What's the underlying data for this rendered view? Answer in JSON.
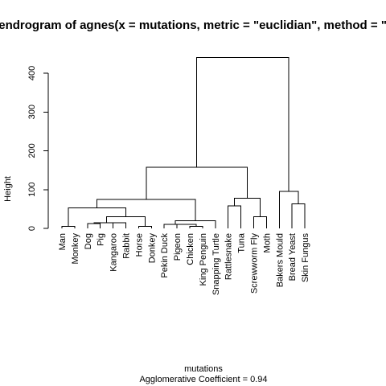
{
  "chart_data": {
    "type": "dendrogram",
    "title": "Dendrogram of  agnes(x = mutations, metric = \"euclidian\", method = \"w",
    "ylabel": "Height",
    "xlabel": "mutations",
    "subtitle": "Agglomerative Coefficient =  0.94",
    "ylim": [
      0,
      460
    ],
    "yticks": [
      0,
      100,
      200,
      300,
      400
    ],
    "leaves": [
      "Man",
      "Monkey",
      "Dog",
      "Pig",
      "Kangaroo",
      "Rabbit",
      "Horse",
      "Donkey",
      "Pekin Duck",
      "Pigeon",
      "Chicken",
      "King Penguin",
      "Snapping Turtle",
      "Rattlesnake",
      "Tuna",
      "Screwworm Fly",
      "Moth",
      "Bakers Mould",
      "Bread Yeast",
      "Skin Fungus"
    ],
    "merges": [
      {
        "left": -1,
        "right": -2,
        "height": 5
      },
      {
        "left": -3,
        "right": -4,
        "height": 12
      },
      {
        "left": -5,
        "right": -6,
        "height": 15
      },
      {
        "left": 2,
        "right": 3,
        "height": 15
      },
      {
        "left": -7,
        "right": -8,
        "height": 5
      },
      {
        "left": 4,
        "right": 5,
        "height": 30
      },
      {
        "left": 1,
        "right": 6,
        "height": 53
      },
      {
        "left": -11,
        "right": -12,
        "height": 5
      },
      {
        "left": -10,
        "right": 8,
        "height": 10
      },
      {
        "left": -9,
        "right": 9,
        "height": 10
      },
      {
        "left": 10,
        "right": -13,
        "height": 20
      },
      {
        "left": 7,
        "right": 11,
        "height": 75
      },
      {
        "left": -14,
        "right": -15,
        "height": 58
      },
      {
        "left": -16,
        "right": -17,
        "height": 30
      },
      {
        "left": 13,
        "right": 14,
        "height": 78
      },
      {
        "left": 12,
        "right": 15,
        "height": 158
      },
      {
        "left": -19,
        "right": -20,
        "height": 63
      },
      {
        "left": -18,
        "right": 17,
        "height": 95
      },
      {
        "left": 16,
        "right": 18,
        "height": 440
      }
    ]
  }
}
